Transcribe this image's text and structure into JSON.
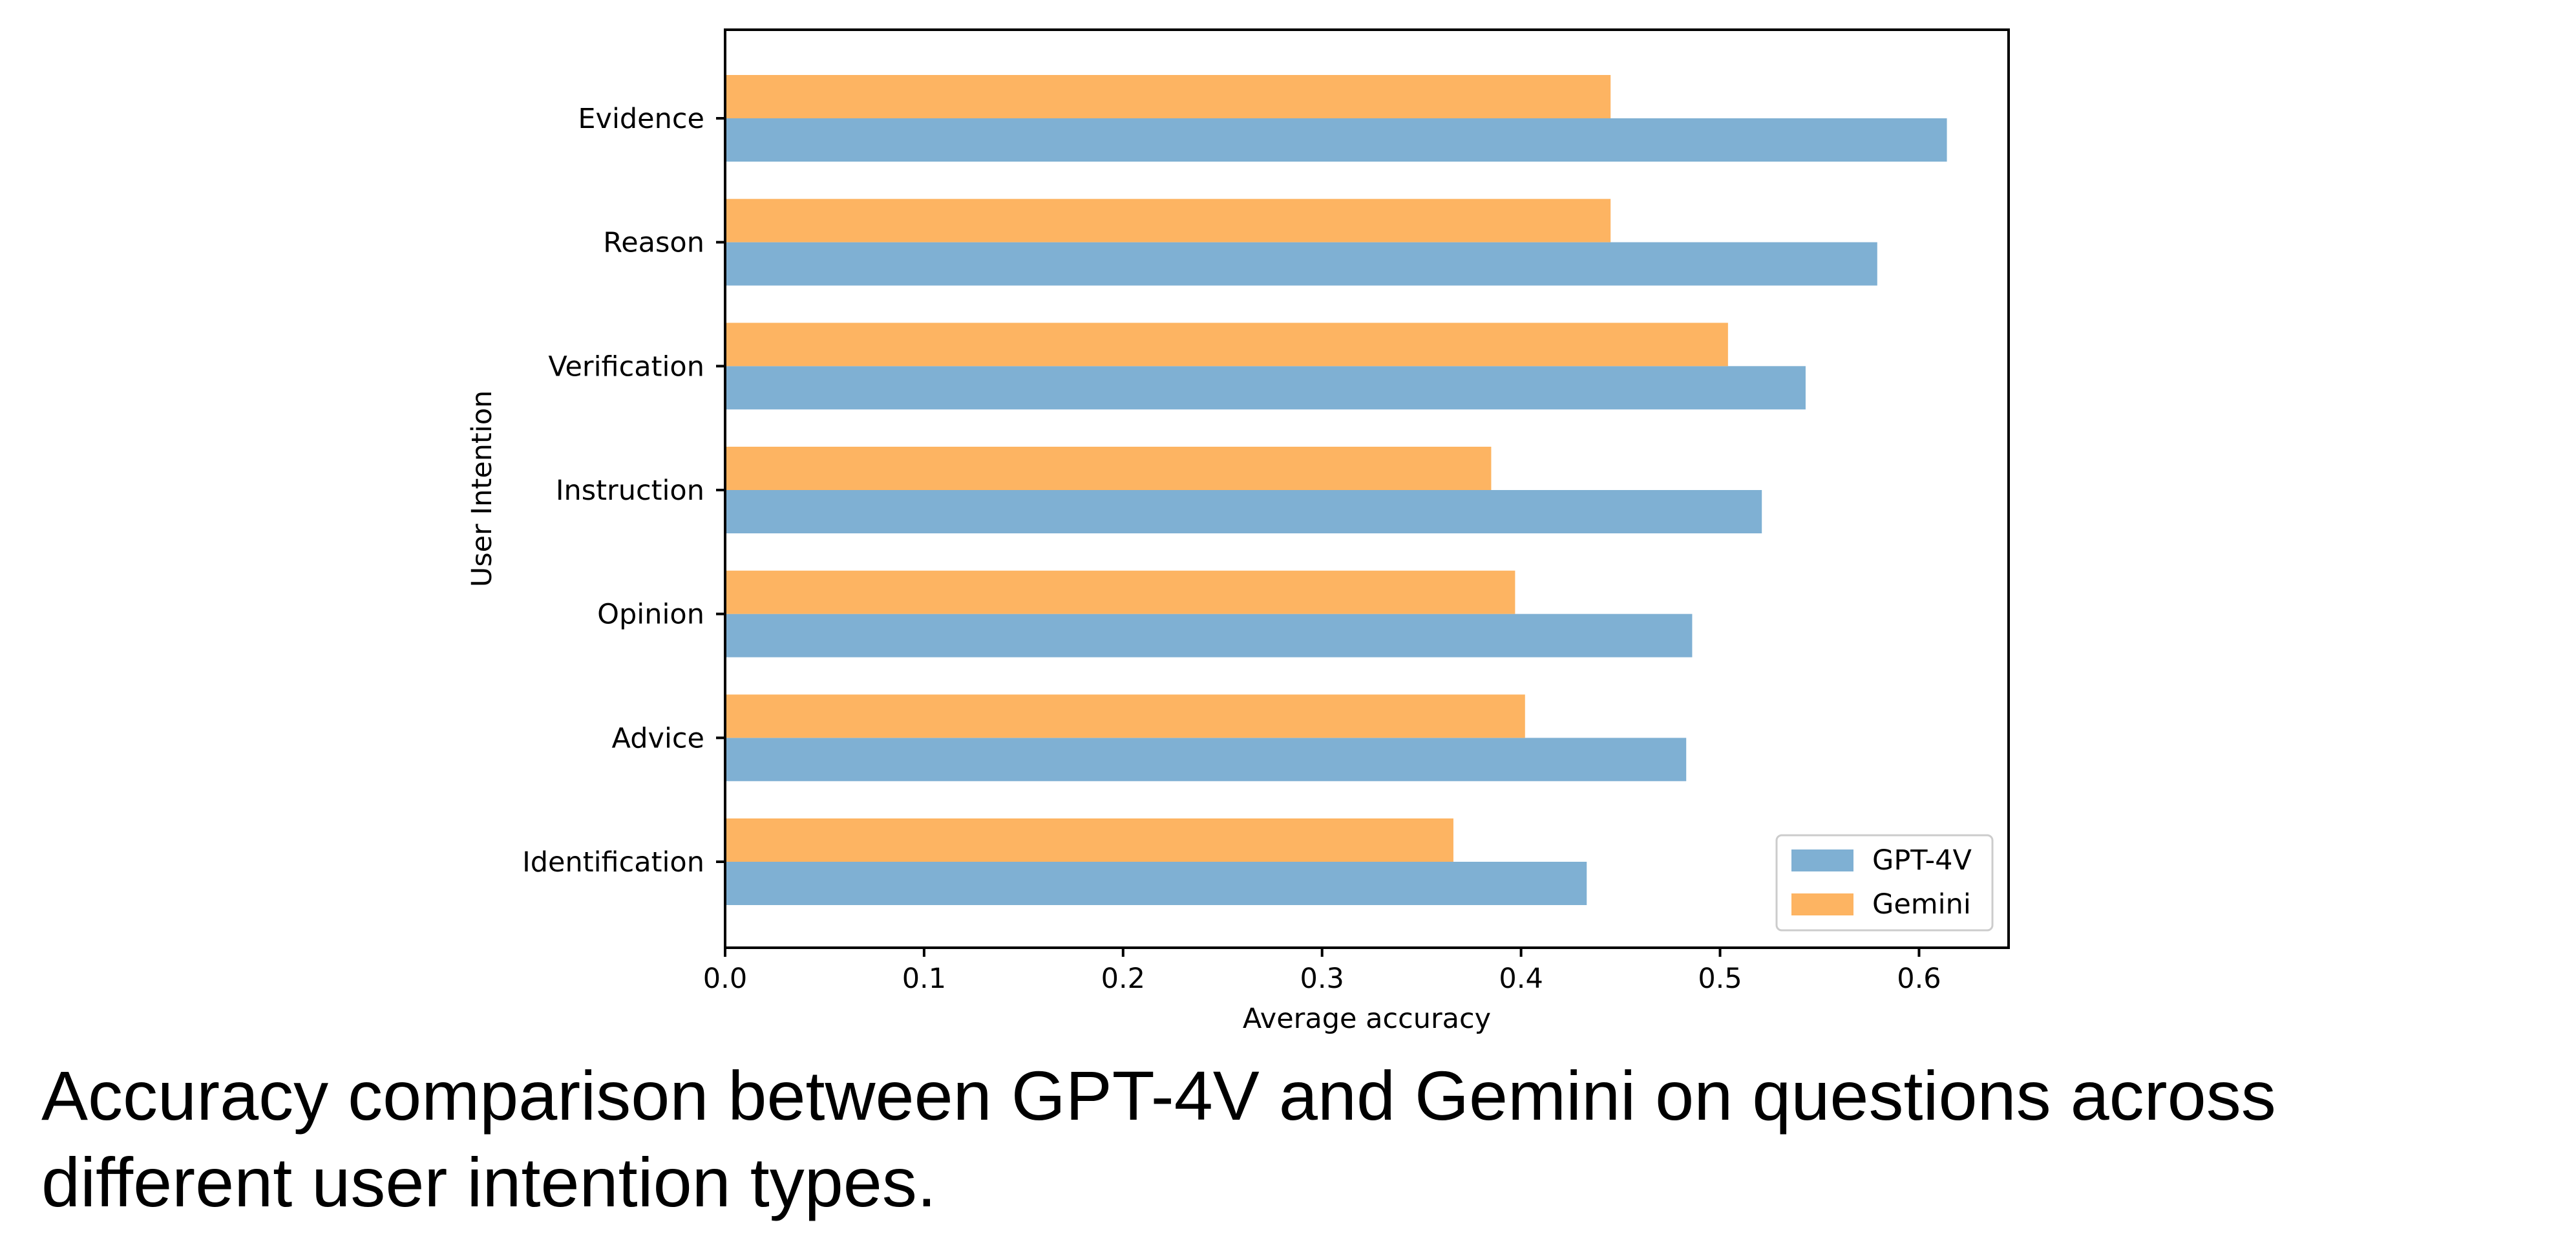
{
  "caption": "Accuracy comparison between GPT-4V and Gemini on questions across different user intention types.",
  "chart_data": {
    "type": "bar",
    "orientation": "horizontal",
    "title": "",
    "xlabel": "Average accuracy",
    "ylabel": "User Intention",
    "xlim": [
      0.0,
      0.645
    ],
    "xticks": [
      "0.0",
      "0.1",
      "0.2",
      "0.3",
      "0.4",
      "0.5",
      "0.6"
    ],
    "categories": [
      "Identification",
      "Advice",
      "Opinion",
      "Instruction",
      "Verification",
      "Reason",
      "Evidence"
    ],
    "series": [
      {
        "name": "GPT-4V",
        "color": "#7fb0d3",
        "values": [
          0.433,
          0.483,
          0.486,
          0.521,
          0.543,
          0.579,
          0.614
        ]
      },
      {
        "name": "Gemini",
        "color": "#fdb462",
        "values": [
          0.366,
          0.402,
          0.397,
          0.385,
          0.504,
          0.445,
          0.445
        ]
      }
    ],
    "legend_position": "lower-right",
    "grid": false
  }
}
